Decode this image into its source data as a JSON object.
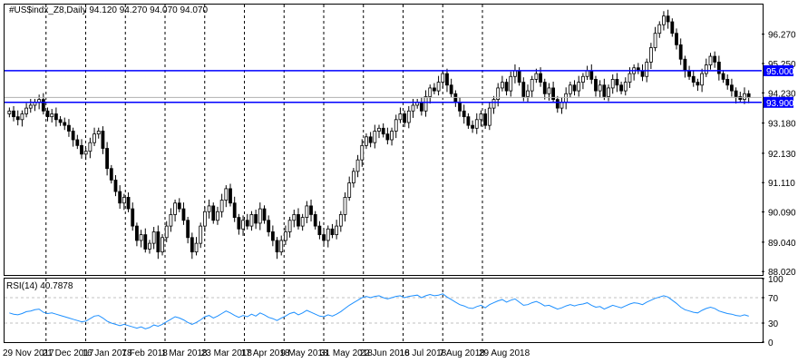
{
  "symbol_label": "#US$indx_Z8,Daily  94.120 94.270 94.070 94.070",
  "rsi_label": "RSI(14) 40.7878",
  "colors": {
    "level": "#0000ff",
    "rsi_line": "#1e90ff",
    "candle_up": "#ffffff",
    "candle_down": "#000000",
    "grid": "#000000"
  },
  "chart_data": [
    {
      "type": "candlestick",
      "title": "#US$indx_Z8,Daily",
      "ohlc_last": {
        "open": 94.12,
        "high": 94.27,
        "low": 94.07,
        "close": 94.07
      },
      "y_ticks": [
        "96.270",
        "95.250",
        "94.230",
        "93.180",
        "92.130",
        "91.110",
        "90.090",
        "89.040",
        "88.020"
      ],
      "ylim": [
        87.9,
        97.3
      ],
      "x_ticks": [
        "29 Nov 2017",
        "21 Dec 2017",
        "16 Jan 2018",
        "7 Feb 2018",
        "1 Mar 2018",
        "23 Mar 2018",
        "17 Apr 2018",
        "9 May 2018",
        "31 May 2018",
        "22 Jun 2018",
        "16 Jul 2018",
        "7 Aug 2018",
        "29 Aug 2018"
      ],
      "grid": "vertical dashed",
      "levels": [
        {
          "label": "95.000",
          "value": 95.0
        },
        {
          "label": "93.900",
          "value": 93.9
        }
      ],
      "current_price": 94.07,
      "closes": [
        93.6,
        93.4,
        93.3,
        93.5,
        93.7,
        93.8,
        93.9,
        94.0,
        93.6,
        93.4,
        93.5,
        93.3,
        93.2,
        93.1,
        92.9,
        92.6,
        92.4,
        92.1,
        92.2,
        92.5,
        92.8,
        92.9,
        92.3,
        91.6,
        91.2,
        90.8,
        90.4,
        90.6,
        90.2,
        89.6,
        89.1,
        89.3,
        88.8,
        89.0,
        89.4,
        88.7,
        89.2,
        89.6,
        90.0,
        90.4,
        90.2,
        89.8,
        89.2,
        88.7,
        89.0,
        89.6,
        90.1,
        90.3,
        89.8,
        90.1,
        90.5,
        90.9,
        90.4,
        89.9,
        89.5,
        89.8,
        89.6,
        90.0,
        89.7,
        90.2,
        89.8,
        89.4,
        89.1,
        88.7,
        89.1,
        89.4,
        89.8,
        90.0,
        89.6,
        89.9,
        90.3,
        90.0,
        89.6,
        89.3,
        89.1,
        89.5,
        89.3,
        89.6,
        90.0,
        90.6,
        91.1,
        91.5,
        91.9,
        92.4,
        92.7,
        92.5,
        92.9,
        93.0,
        92.8,
        92.6,
        92.9,
        93.3,
        93.5,
        93.2,
        93.6,
        93.8,
        93.9,
        93.6,
        94.1,
        94.4,
        94.3,
        94.6,
        94.9,
        94.5,
        94.2,
        93.9,
        93.6,
        93.4,
        93.1,
        93.0,
        93.3,
        93.5,
        93.1,
        93.7,
        94.0,
        94.4,
        94.6,
        94.3,
        94.8,
        95.0,
        94.6,
        94.1,
        94.3,
        94.7,
        94.9,
        94.6,
        94.2,
        94.4,
        94.0,
        93.7,
        93.9,
        94.2,
        94.5,
        94.3,
        94.6,
        94.8,
        95.0,
        94.7,
        94.3,
        94.5,
        94.1,
        94.4,
        94.7,
        94.5,
        94.3,
        94.6,
        94.9,
        95.1,
        95.0,
        94.8,
        95.3,
        95.8,
        96.3,
        96.6,
        96.9,
        96.7,
        96.3,
        95.9,
        95.4,
        95.0,
        94.8,
        94.6,
        94.5,
        94.9,
        95.2,
        95.5,
        95.3,
        94.9,
        94.7,
        94.5,
        94.3,
        94.1,
        94.0,
        94.2,
        94.07
      ]
    },
    {
      "type": "line",
      "title": "RSI(14) 40.7878",
      "series": [
        {
          "name": "RSI(14)",
          "values": [
            46,
            44,
            43,
            45,
            48,
            49,
            51,
            52,
            47,
            45,
            46,
            44,
            42,
            40,
            38,
            36,
            34,
            32,
            33,
            37,
            41,
            42,
            38,
            33,
            30,
            28,
            26,
            28,
            26,
            24,
            22,
            24,
            21,
            23,
            27,
            25,
            28,
            32,
            36,
            40,
            38,
            35,
            31,
            28,
            31,
            35,
            40,
            42,
            38,
            41,
            45,
            49,
            46,
            42,
            39,
            42,
            40,
            44,
            41,
            46,
            43,
            39,
            37,
            34,
            38,
            41,
            45,
            47,
            43,
            46,
            50,
            47,
            44,
            41,
            40,
            43,
            41,
            44,
            48,
            53,
            58,
            62,
            66,
            70,
            72,
            70,
            72,
            73,
            70,
            68,
            70,
            72,
            73,
            70,
            72,
            73,
            74,
            70,
            73,
            75,
            73,
            74,
            76,
            71,
            67,
            63,
            59,
            57,
            54,
            53,
            56,
            58,
            54,
            59,
            62,
            65,
            67,
            63,
            66,
            68,
            63,
            58,
            59,
            62,
            64,
            61,
            57,
            58,
            55,
            52,
            54,
            57,
            59,
            57,
            59,
            60,
            62,
            58,
            55,
            56,
            52,
            55,
            58,
            56,
            54,
            57,
            60,
            62,
            61,
            59,
            63,
            66,
            69,
            71,
            73,
            71,
            66,
            61,
            55,
            51,
            49,
            47,
            46,
            50,
            53,
            55,
            53,
            49,
            47,
            45,
            44,
            42,
            41,
            43,
            40.7878
          ]
        }
      ],
      "y_ticks": [
        "100",
        "70",
        "30",
        "0"
      ],
      "ylim": [
        0,
        100
      ],
      "levels": [
        70,
        30
      ]
    }
  ]
}
